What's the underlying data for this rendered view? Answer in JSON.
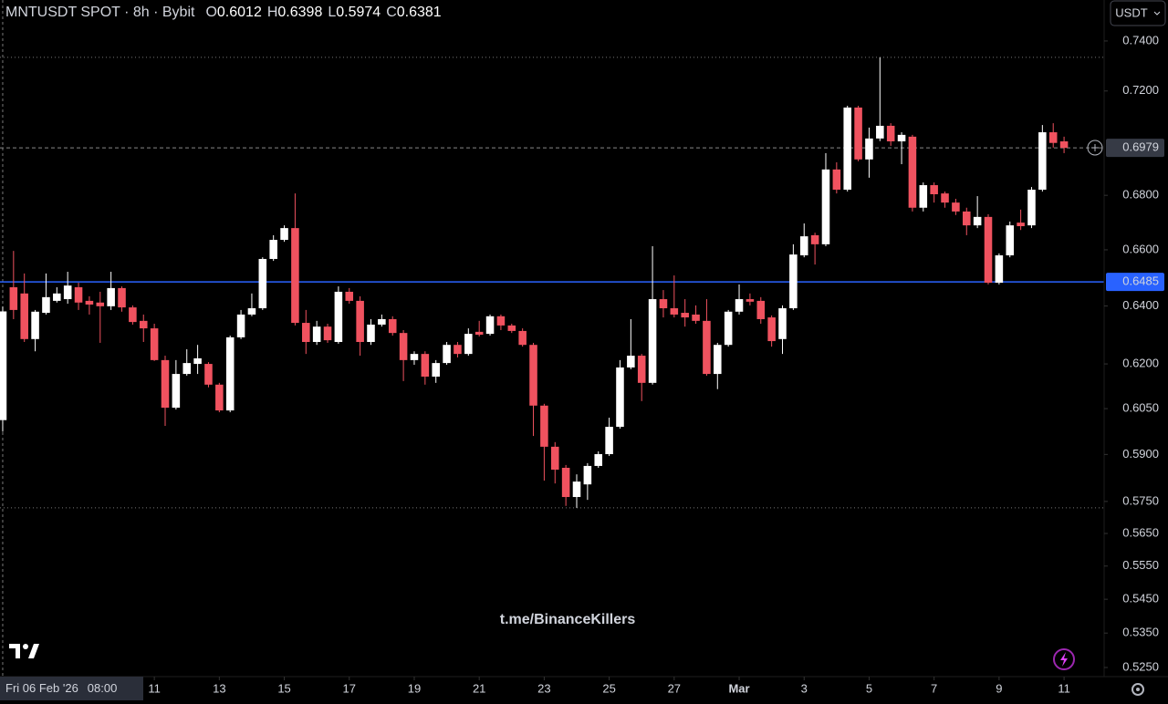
{
  "chart_data": {
    "type": "candlestick",
    "title": "MNTUSDT SPOT · 8h · Bybit",
    "ohlc_legend": [
      {
        "key": "O",
        "value": 0.6012
      },
      {
        "key": "H",
        "value": 0.6398
      },
      {
        "key": "L",
        "value": 0.5974
      },
      {
        "key": "C",
        "value": 0.6381
      }
    ],
    "open": [
      0.6012,
      0.6466,
      0.6444,
      0.6285,
      0.6376,
      0.6418,
      0.6424,
      0.6466,
      0.6418,
      0.6412,
      0.6399,
      0.6463,
      0.6395,
      0.6348,
      0.6322,
      0.6213,
      0.6053,
      0.6166,
      0.62,
      0.62,
      0.613,
      0.6044,
      0.6291,
      0.637,
      0.6392,
      0.6567,
      0.6636,
      0.6679,
      0.6341,
      0.6275,
      0.6328,
      0.6275,
      0.645,
      0.6418,
      0.6275,
      0.6335,
      0.6354,
      0.6306,
      0.6213,
      0.6234,
      0.6157,
      0.6203,
      0.6265,
      0.6234,
      0.631,
      0.6303,
      0.6364,
      0.6332,
      0.6313,
      0.6265,
      0.606,
      0.5925,
      0.5857,
      0.5764,
      0.5804,
      0.5863,
      0.5901,
      0.599,
      0.6188,
      0.6228,
      0.6136,
      0.6424,
      0.6392,
      0.6376,
      0.637,
      0.6348,
      0.6166,
      0.6265,
      0.638,
      0.6424,
      0.6418,
      0.636,
      0.6285,
      0.6392,
      0.658,
      0.6653,
      0.662,
      0.6897,
      0.6821,
      0.7135,
      0.6935,
      0.7015,
      0.7064,
      0.7004,
      0.7022,
      0.6754,
      0.6838,
      0.6807,
      0.6773,
      0.674,
      0.6689,
      0.672,
      0.6482,
      0.658,
      0.6699,
      0.6689,
      0.6821,
      0.7039,
      0.7004
    ],
    "high": [
      0.6398,
      0.6596,
      0.6515,
      0.6386,
      0.6515,
      0.6466,
      0.6521,
      0.6482,
      0.6434,
      0.645,
      0.6521,
      0.6469,
      0.6402,
      0.637,
      0.6338,
      0.6228,
      0.6213,
      0.625,
      0.6265,
      0.6206,
      0.6136,
      0.6297,
      0.6386,
      0.6444,
      0.6573,
      0.6653,
      0.6689,
      0.6807,
      0.6386,
      0.6348,
      0.6338,
      0.6469,
      0.6463,
      0.6434,
      0.6354,
      0.637,
      0.6364,
      0.6316,
      0.6243,
      0.6243,
      0.6213,
      0.6275,
      0.6275,
      0.6322,
      0.6348,
      0.637,
      0.637,
      0.6338,
      0.6322,
      0.6272,
      0.6066,
      0.594,
      0.5866,
      0.5836,
      0.5872,
      0.591,
      0.602,
      0.6213,
      0.6354,
      0.6234,
      0.6613,
      0.6456,
      0.6508,
      0.6424,
      0.6402,
      0.6424,
      0.6272,
      0.6386,
      0.6476,
      0.6444,
      0.6431,
      0.6367,
      0.6402,
      0.662,
      0.6696,
      0.6662,
      0.6959,
      0.6924,
      0.7142,
      0.7142,
      0.7057,
      0.7334,
      0.7074,
      0.7039,
      0.7029,
      0.6848,
      0.6848,
      0.6814,
      0.6787,
      0.6754,
      0.6797,
      0.673,
      0.6587,
      0.6703,
      0.6747,
      0.6831,
      0.7067,
      0.7074,
      0.7022
    ],
    "low": [
      0.5974,
      0.6354,
      0.6275,
      0.6243,
      0.637,
      0.6412,
      0.6408,
      0.6386,
      0.637,
      0.6272,
      0.6386,
      0.638,
      0.6335,
      0.6275,
      0.621,
      0.5993,
      0.6047,
      0.616,
      0.6166,
      0.6121,
      0.6038,
      0.6038,
      0.6285,
      0.6364,
      0.6386,
      0.656,
      0.6629,
      0.6332,
      0.6234,
      0.6265,
      0.6272,
      0.6269,
      0.6408,
      0.6228,
      0.6265,
      0.6328,
      0.6297,
      0.6142,
      0.6197,
      0.613,
      0.6136,
      0.6197,
      0.6222,
      0.6228,
      0.6294,
      0.6297,
      0.6316,
      0.6306,
      0.6259,
      0.596,
      0.5816,
      0.5807,
      0.5736,
      0.573,
      0.5755,
      0.5857,
      0.5895,
      0.5984,
      0.6182,
      0.6075,
      0.613,
      0.636,
      0.636,
      0.6328,
      0.6338,
      0.616,
      0.6115,
      0.6259,
      0.637,
      0.6402,
      0.6338,
      0.6259,
      0.6234,
      0.6386,
      0.6573,
      0.6547,
      0.6613,
      0.6807,
      0.6814,
      0.6928,
      0.6866,
      0.7005,
      0.6987,
      0.6917,
      0.674,
      0.674,
      0.6773,
      0.6754,
      0.6727,
      0.6653,
      0.6679,
      0.6476,
      0.6476,
      0.6573,
      0.6672,
      0.6679,
      0.6814,
      0.698,
      0.6959
    ],
    "close": [
      0.6381,
      0.6386,
      0.6285,
      0.638,
      0.6431,
      0.6444,
      0.6472,
      0.6412,
      0.6405,
      0.6399,
      0.6463,
      0.6395,
      0.6344,
      0.6322,
      0.6213,
      0.6053,
      0.6166,
      0.6203,
      0.6219,
      0.613,
      0.6044,
      0.6291,
      0.637,
      0.6392,
      0.6567,
      0.6636,
      0.6679,
      0.6341,
      0.6275,
      0.6328,
      0.6281,
      0.645,
      0.6418,
      0.6275,
      0.6335,
      0.6354,
      0.6306,
      0.6213,
      0.6234,
      0.6157,
      0.6203,
      0.6265,
      0.6234,
      0.6303,
      0.63,
      0.6364,
      0.6332,
      0.6313,
      0.6265,
      0.606,
      0.5925,
      0.5851,
      0.5764,
      0.5813,
      0.5863,
      0.5901,
      0.599,
      0.6188,
      0.6228,
      0.6136,
      0.6424,
      0.6392,
      0.637,
      0.636,
      0.6348,
      0.6166,
      0.6265,
      0.638,
      0.6424,
      0.6415,
      0.6354,
      0.6278,
      0.6392,
      0.6583,
      0.6649,
      0.662,
      0.6897,
      0.6821,
      0.7135,
      0.6935,
      0.7015,
      0.7064,
      0.7004,
      0.7029,
      0.6754,
      0.6838,
      0.6804,
      0.6773,
      0.674,
      0.6689,
      0.672,
      0.6482,
      0.658,
      0.6689,
      0.6686,
      0.6821,
      0.7039,
      0.6998,
      0.6979
    ],
    "up_color": "#ffffff",
    "down_color": "#f0525f",
    "log_scale": true,
    "ylim": [
      0.5229,
      0.7568
    ],
    "yticks": [
      {
        "value": 0.74,
        "label": "0.7400"
      },
      {
        "value": 0.72,
        "label": "0.7200"
      },
      {
        "value": 0.68,
        "label": "0.6800"
      },
      {
        "value": 0.66,
        "label": "0.6600"
      },
      {
        "value": 0.64,
        "label": "0.6400"
      },
      {
        "value": 0.62,
        "label": "0.6200"
      },
      {
        "value": 0.605,
        "label": "0.6050"
      },
      {
        "value": 0.59,
        "label": "0.5900"
      },
      {
        "value": 0.575,
        "label": "0.5750"
      },
      {
        "value": 0.565,
        "label": "0.5650"
      },
      {
        "value": 0.555,
        "label": "0.5550"
      },
      {
        "value": 0.545,
        "label": "0.5450"
      },
      {
        "value": 0.535,
        "label": "0.5350"
      },
      {
        "value": 0.525,
        "label": "0.5250"
      }
    ],
    "xlim": [
      -0.25,
      101.7
    ],
    "xticks": [
      {
        "value": 14,
        "label": "11"
      },
      {
        "value": 20,
        "label": "13"
      },
      {
        "value": 26,
        "label": "15"
      },
      {
        "value": 32,
        "label": "17"
      },
      {
        "value": 38,
        "label": "19"
      },
      {
        "value": 44,
        "label": "21"
      },
      {
        "value": 50,
        "label": "23"
      },
      {
        "value": 56,
        "label": "25"
      },
      {
        "value": 62,
        "label": "27"
      },
      {
        "value": 68,
        "label": "Mar"
      },
      {
        "value": 74,
        "label": "3"
      },
      {
        "value": 80,
        "label": "5"
      },
      {
        "value": 86,
        "label": "7"
      },
      {
        "value": 92,
        "label": "9"
      },
      {
        "value": 98,
        "label": "11"
      }
    ],
    "current_price": 0.6979,
    "horizontal_line": {
      "value": 0.6485,
      "color": "#2962ff"
    },
    "dotted_levels": [
      0.7334,
      0.573
    ],
    "currency": "USDT",
    "watermark": "t.me/BinanceKillers",
    "crosshair_label": {
      "date": "Fri 06 Feb '26",
      "time": "08:00"
    }
  }
}
